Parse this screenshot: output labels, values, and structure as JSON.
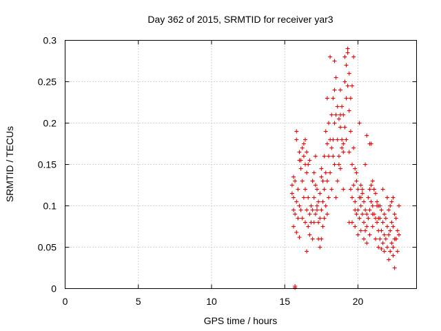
{
  "chart_data": {
    "type": "scatter",
    "title": "Day 362 of 2015, SRMTID for receiver yar3",
    "xlabel": "GPS time / hours",
    "ylabel": "SRMTID / TECUs",
    "xlim": [
      0,
      24
    ],
    "ylim": [
      0,
      0.3
    ],
    "x_ticks": [
      "0",
      "5",
      "10",
      "15",
      "20"
    ],
    "y_ticks": [
      "0",
      "0.05",
      "0.1",
      "0.15",
      "0.2",
      "0.25",
      "0.3"
    ],
    "grid": true,
    "marker": "+",
    "color": "#ee0000",
    "series": [
      {
        "name": "SRMTID",
        "x": [
          15.5,
          15.5,
          15.6,
          15.6,
          15.6,
          15.7,
          15.7,
          15.8,
          15.8,
          15.8,
          15.9,
          15.9,
          16.0,
          16.0,
          16.0,
          16.1,
          16.1,
          16.2,
          16.2,
          16.2,
          16.3,
          16.3,
          16.4,
          16.4,
          16.4,
          16.5,
          16.5,
          16.5,
          16.6,
          16.6,
          16.7,
          16.7,
          16.7,
          16.8,
          16.8,
          16.9,
          16.9,
          16.9,
          17.0,
          17.0,
          17.1,
          17.1,
          17.1,
          17.2,
          17.2,
          17.3,
          17.3,
          17.3,
          17.4,
          17.4,
          17.5,
          17.5,
          17.5,
          17.6,
          17.6,
          17.7,
          17.7,
          17.7,
          17.8,
          17.8,
          17.9,
          17.9,
          17.9,
          18.0,
          18.0,
          18.0,
          18.1,
          18.1,
          18.2,
          18.2,
          18.2,
          18.3,
          18.3,
          18.4,
          18.4,
          18.4,
          18.5,
          18.5,
          18.6,
          18.6,
          18.6,
          18.7,
          18.7,
          18.8,
          18.8,
          18.8,
          18.9,
          18.9,
          19.0,
          19.0,
          19.0,
          19.1,
          19.1,
          19.2,
          19.2,
          19.2,
          19.3,
          19.3,
          19.4,
          19.4,
          19.4,
          19.5,
          19.5,
          19.6,
          19.6,
          19.6,
          19.7,
          19.7,
          19.8,
          19.8,
          19.8,
          19.9,
          19.9,
          20.0,
          20.0,
          20.0,
          20.1,
          20.1,
          20.2,
          20.2,
          20.2,
          20.3,
          20.3,
          20.4,
          20.4,
          20.4,
          20.5,
          20.5,
          20.6,
          20.6,
          20.6,
          20.7,
          20.7,
          20.8,
          20.8,
          20.8,
          20.9,
          20.9,
          21.0,
          21.0,
          21.0,
          21.1,
          21.1,
          21.2,
          21.2,
          21.2,
          21.3,
          21.3,
          21.4,
          21.4,
          21.4,
          21.5,
          21.5,
          21.6,
          21.6,
          21.6,
          21.7,
          21.7,
          21.8,
          21.8,
          21.8,
          21.9,
          21.9,
          22.0,
          22.0,
          22.0,
          22.1,
          22.1,
          22.2,
          22.2,
          22.2,
          22.3,
          22.3,
          22.4,
          22.4,
          22.4,
          22.5,
          22.5,
          22.6,
          22.6,
          22.7,
          22.7,
          22.8,
          22.8,
          15.6,
          15.8,
          16.0,
          16.3,
          16.6,
          16.9,
          17.2,
          17.5,
          17.8,
          18.1,
          18.4,
          18.7,
          19.0,
          19.3,
          19.6,
          19.9,
          20.2,
          20.5,
          20.8,
          21.1,
          21.4,
          21.7,
          22.0,
          22.3,
          22.6,
          16.1,
          16.5,
          17.0,
          17.6,
          18.3,
          18.9,
          19.4,
          19.8,
          20.3,
          20.9,
          21.5,
          22.1,
          16.4,
          17.4,
          18.5,
          19.1,
          19.5,
          20.1,
          21.0,
          22.4,
          17.9,
          18.8,
          19.7,
          20.6,
          21.3,
          22.5
        ],
        "y": [
          0.115,
          0.125,
          0.095,
          0.11,
          0.075,
          0.13,
          0.09,
          0.18,
          0.105,
          0.068,
          0.12,
          0.085,
          0.165,
          0.1,
          0.062,
          0.145,
          0.095,
          0.17,
          0.13,
          0.085,
          0.16,
          0.11,
          0.15,
          0.12,
          0.08,
          0.14,
          0.165,
          0.095,
          0.11,
          0.075,
          0.155,
          0.09,
          0.065,
          0.1,
          0.08,
          0.13,
          0.095,
          0.06,
          0.14,
          0.11,
          0.16,
          0.125,
          0.09,
          0.12,
          0.095,
          0.105,
          0.08,
          0.06,
          0.115,
          0.085,
          0.145,
          0.095,
          0.06,
          0.13,
          0.105,
          0.16,
          0.12,
          0.085,
          0.14,
          0.1,
          0.175,
          0.13,
          0.09,
          0.2,
          0.16,
          0.11,
          0.18,
          0.14,
          0.21,
          0.17,
          0.12,
          0.23,
          0.18,
          0.24,
          0.2,
          0.15,
          0.255,
          0.21,
          0.22,
          0.18,
          0.13,
          0.205,
          0.16,
          0.24,
          0.195,
          0.145,
          0.22,
          0.17,
          0.21,
          0.165,
          0.12,
          0.25,
          0.195,
          0.27,
          0.23,
          0.18,
          0.285,
          0.245,
          0.26,
          0.215,
          0.165,
          0.23,
          0.19,
          0.15,
          0.11,
          0.08,
          0.17,
          0.125,
          0.145,
          0.105,
          0.075,
          0.13,
          0.09,
          0.12,
          0.095,
          0.065,
          0.11,
          0.085,
          0.125,
          0.1,
          0.07,
          0.115,
          0.09,
          0.105,
          0.08,
          0.06,
          0.095,
          0.07,
          0.09,
          0.075,
          0.055,
          0.11,
          0.085,
          0.12,
          0.095,
          0.065,
          0.125,
          0.105,
          0.13,
          0.1,
          0.075,
          0.12,
          0.09,
          0.115,
          0.085,
          0.06,
          0.105,
          0.08,
          0.1,
          0.07,
          0.05,
          0.085,
          0.06,
          0.095,
          0.07,
          0.048,
          0.08,
          0.055,
          0.09,
          0.065,
          0.045,
          0.085,
          0.06,
          0.11,
          0.075,
          0.05,
          0.095,
          0.065,
          0.1,
          0.07,
          0.045,
          0.08,
          0.055,
          0.11,
          0.075,
          0.05,
          0.09,
          0.06,
          0.085,
          0.06,
          0.07,
          0.045,
          0.1,
          0.065,
          0.135,
          0.19,
          0.155,
          0.175,
          0.15,
          0.13,
          0.1,
          0.135,
          0.19,
          0.28,
          0.275,
          0.15,
          0.175,
          0.29,
          0.245,
          0.14,
          0.11,
          0.15,
          0.175,
          0.12,
          0.085,
          0.12,
          0.11,
          0.105,
          0.06,
          0.155,
          0.045,
          0.08,
          0.075,
          0.16,
          0.18,
          0.08,
          0.095,
          0.12,
          0.175,
          0.1,
          0.035,
          0.18,
          0.05,
          0.11,
          0.28,
          0.12,
          0.2,
          0.09,
          0.04,
          0.23,
          0.21,
          0.28,
          0.185,
          0.1,
          0.025
        ],
        "markers": {
          "x": [
            15.7,
            15.7
          ],
          "y": [
            0.0,
            0.002
          ]
        }
      }
    ]
  }
}
